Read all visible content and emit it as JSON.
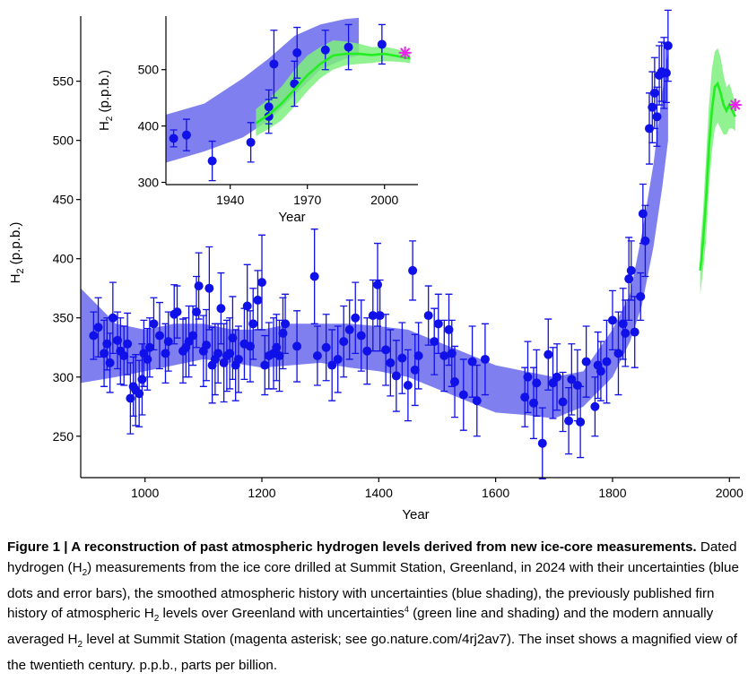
{
  "caption": {
    "label": "Figure 1 | ",
    "title": "A reconstruction of past atmospheric hydrogen levels derived from new ice-core measurements.",
    "t1": " Dated hydrogen (H",
    "t2": ") measurements from the ice core drilled at Summit Station, Greenland, in 2024 with their uncertainties (blue dots and error bars), the smoothed atmospheric history with uncertainties (blue shading), the previously published firn history of atmospheric H",
    "t3": " levels over Greenland with uncertainties",
    "ref": "4",
    "t4": " (green line and shading) and the modern annually averaged H",
    "t5": " level at Summit Station (magenta asterisk; see go.nature.com/4rj2av7). The inset shows a magnified view of the twentieth century. p.p.b., parts per billion.",
    "sub": "2"
  },
  "chart_data": [
    {
      "type": "scatter",
      "xlabel": "Year",
      "ylabel_main": "H",
      "ylabel_sub": "2",
      "ylabel_tail": " (p.p.b.)",
      "xlim": [
        890,
        2018
      ],
      "ylim": [
        215,
        605
      ],
      "xticks": [
        1000,
        1200,
        1400,
        1600,
        1800,
        2000
      ],
      "yticks": [
        250,
        300,
        350,
        400,
        450,
        500,
        550
      ],
      "colors": {
        "points": "#1010e8",
        "band": "#7f7ff0",
        "firn_line": "#22ee22",
        "firn_band": "#7df07d",
        "asterisk": "#ee22ee"
      },
      "series": [
        {
          "points": [
            [
              912,
              335,
              20
            ],
            [
              920,
              342,
              25
            ],
            [
              930,
              320,
              28
            ],
            [
              935,
              328,
              22
            ],
            [
              940,
              312,
              25
            ],
            [
              945,
              350,
              30
            ],
            [
              953,
              331,
              24
            ],
            [
              958,
              322,
              28
            ],
            [
              964,
              318,
              25
            ],
            [
              970,
              328,
              26
            ],
            [
              975,
              282,
              30
            ],
            [
              980,
              292,
              25
            ],
            [
              984,
              289,
              30
            ],
            [
              990,
              286,
              28
            ],
            [
              995,
              298,
              30
            ],
            [
              998,
              320,
              28
            ],
            [
              1004,
              315,
              26
            ],
            [
              1008,
              325,
              25
            ],
            [
              1015,
              345,
              22
            ],
            [
              1025,
              335,
              28
            ],
            [
              1035,
              320,
              25
            ],
            [
              1040,
              330,
              25
            ],
            [
              1050,
              353,
              25
            ],
            [
              1055,
              355,
              22
            ],
            [
              1065,
              322,
              27
            ],
            [
              1070,
              325,
              25
            ],
            [
              1075,
              330,
              30
            ],
            [
              1082,
              335,
              25
            ],
            [
              1088,
              355,
              30
            ],
            [
              1092,
              377,
              28
            ],
            [
              1100,
              322,
              30
            ],
            [
              1105,
              327,
              30
            ],
            [
              1110,
              375,
              35
            ],
            [
              1115,
              310,
              32
            ],
            [
              1120,
              315,
              30
            ],
            [
              1125,
              320,
              25
            ],
            [
              1130,
              358,
              30
            ],
            [
              1135,
              312,
              33
            ],
            [
              1140,
              318,
              30
            ],
            [
              1145,
              320,
              30
            ],
            [
              1150,
              333,
              35
            ],
            [
              1155,
              310,
              30
            ],
            [
              1160,
              315,
              28
            ],
            [
              1170,
              328,
              30
            ],
            [
              1175,
              360,
              35
            ],
            [
              1180,
              326,
              30
            ],
            [
              1185,
              345,
              30
            ],
            [
              1193,
              365,
              25
            ],
            [
              1200,
              380,
              40
            ],
            [
              1205,
              310,
              25
            ],
            [
              1212,
              318,
              28
            ],
            [
              1220,
              320,
              30
            ],
            [
              1225,
              325,
              28
            ],
            [
              1230,
              318,
              30
            ],
            [
              1236,
              337,
              30
            ],
            [
              1240,
              345,
              25
            ],
            [
              1260,
              326,
              30
            ],
            [
              1290,
              385,
              40
            ],
            [
              1295,
              318,
              25
            ],
            [
              1310,
              325,
              28
            ],
            [
              1320,
              310,
              30
            ],
            [
              1330,
              315,
              28
            ],
            [
              1340,
              330,
              30
            ],
            [
              1350,
              340,
              25
            ],
            [
              1360,
              350,
              30
            ],
            [
              1370,
              335,
              30
            ],
            [
              1380,
              322,
              28
            ],
            [
              1390,
              352,
              30
            ],
            [
              1398,
              378,
              35
            ],
            [
              1402,
              352,
              30
            ],
            [
              1412,
              323,
              30
            ],
            [
              1420,
              312,
              28
            ],
            [
              1430,
              301,
              30
            ],
            [
              1440,
              316,
              30
            ],
            [
              1450,
              293,
              30
            ],
            [
              1458,
              390,
              25
            ],
            [
              1462,
              306,
              30
            ],
            [
              1468,
              318,
              28
            ],
            [
              1485,
              352,
              25
            ],
            [
              1495,
              330,
              28
            ],
            [
              1502,
              345,
              25
            ],
            [
              1512,
              318,
              30
            ],
            [
              1520,
              340,
              30
            ],
            [
              1525,
              320,
              28
            ],
            [
              1530,
              296,
              30
            ],
            [
              1545,
              285,
              30
            ],
            [
              1560,
              313,
              30
            ],
            [
              1568,
              280,
              30
            ],
            [
              1582,
              315,
              30
            ],
            [
              1650,
              283,
              25
            ],
            [
              1655,
              300,
              30
            ],
            [
              1665,
              278,
              30
            ],
            [
              1670,
              295,
              28
            ],
            [
              1680,
              244,
              30
            ],
            [
              1690,
              319,
              30
            ],
            [
              1698,
              295,
              30
            ],
            [
              1705,
              300,
              28
            ],
            [
              1715,
              279,
              25
            ],
            [
              1725,
              263,
              28
            ],
            [
              1730,
              298,
              30
            ],
            [
              1740,
              293,
              30
            ],
            [
              1745,
              262,
              30
            ],
            [
              1755,
              313,
              30
            ],
            [
              1770,
              275,
              25
            ],
            [
              1775,
              310,
              28
            ],
            [
              1780,
              305,
              25
            ],
            [
              1790,
              313,
              35
            ],
            [
              1800,
              348,
              25
            ],
            [
              1810,
              320,
              35
            ],
            [
              1818,
              345,
              30
            ],
            [
              1822,
              337,
              28
            ],
            [
              1828,
              383,
              35
            ],
            [
              1832,
              390,
              25
            ],
            [
              1838,
              338,
              30
            ],
            [
              1848,
              368,
              20
            ],
            [
              1852,
              438,
              25
            ],
            [
              1856,
              415,
              30
            ],
            [
              1863,
              510,
              30
            ],
            [
              1868,
              528,
              30
            ],
            [
              1872,
              540,
              30
            ],
            [
              1876,
              520,
              25
            ],
            [
              1880,
              555,
              25
            ],
            [
              1884,
              558,
              25
            ],
            [
              1888,
              557,
              30
            ],
            [
              1892,
              557,
              25
            ],
            [
              1895,
              580,
              30
            ]
          ],
          "band_x": [
            890,
            950,
            1000,
            1050,
            1100,
            1150,
            1200,
            1250,
            1300,
            1350,
            1400,
            1450,
            1500,
            1550,
            1600,
            1650,
            1700,
            1750,
            1800,
            1830,
            1850,
            1870,
            1885,
            1895
          ],
          "band_lo": [
            295,
            300,
            305,
            310,
            315,
            312,
            308,
            310,
            312,
            308,
            305,
            300,
            290,
            280,
            270,
            268,
            265,
            275,
            300,
            330,
            360,
            410,
            460,
            500
          ],
          "band_hi": [
            375,
            345,
            340,
            345,
            345,
            340,
            340,
            345,
            345,
            345,
            343,
            340,
            330,
            320,
            310,
            305,
            300,
            305,
            340,
            370,
            420,
            480,
            540,
            575
          ],
          "firn_x": [
            1950,
            1955,
            1960,
            1965,
            1970,
            1975,
            1980,
            1985,
            1990,
            1995,
            2000,
            2005,
            2010
          ],
          "firn_y": [
            390,
            415,
            450,
            495,
            525,
            545,
            548,
            540,
            530,
            525,
            530,
            525,
            520
          ],
          "firn_lo": [
            370,
            390,
            415,
            460,
            490,
            510,
            515,
            510,
            505,
            505,
            510,
            510,
            508
          ],
          "firn_hi": [
            410,
            440,
            485,
            530,
            560,
            575,
            578,
            570,
            555,
            545,
            548,
            540,
            532
          ],
          "asterisk": [
            2010,
            530
          ]
        }
      ]
    },
    {
      "type": "scatter",
      "xlabel": "Year",
      "ylabel_main": "H",
      "ylabel_sub": "2",
      "ylabel_tail": " (p.p.b.)",
      "xlim": [
        1915,
        2013
      ],
      "ylim": [
        296,
        595
      ],
      "xticks": [
        1940,
        1970,
        2000
      ],
      "yticks": [
        300,
        400,
        500
      ],
      "series": [
        {
          "points": [
            [
              1918,
              378,
              15
            ],
            [
              1923,
              384,
              28
            ],
            [
              1933,
              338,
              35
            ],
            [
              1948,
              371,
              35
            ],
            [
              1955,
              417,
              30
            ],
            [
              1955,
              434,
              30
            ],
            [
              1957,
              510,
              60
            ],
            [
              1965,
              475,
              40
            ],
            [
              1966,
              530,
              45
            ],
            [
              1977,
              535,
              35
            ],
            [
              1986,
              540,
              40
            ],
            [
              1999,
              545,
              35
            ]
          ],
          "band_x": [
            1915,
            1930,
            1945,
            1955,
            1965,
            1975,
            1985,
            1990
          ],
          "band_lo": [
            335,
            355,
            380,
            410,
            455,
            500,
            520,
            525
          ],
          "band_hi": [
            420,
            440,
            485,
            520,
            560,
            580,
            590,
            592
          ],
          "firn_x": [
            1950,
            1955,
            1960,
            1965,
            1970,
            1975,
            1980,
            1985,
            1990,
            1995,
            2000,
            2005,
            2010
          ],
          "firn_y": [
            405,
            420,
            440,
            465,
            490,
            510,
            525,
            528,
            528,
            526,
            528,
            524,
            520
          ],
          "firn_lo": [
            382,
            395,
            410,
            435,
            462,
            485,
            500,
            508,
            510,
            512,
            515,
            514,
            512
          ],
          "firn_hi": [
            430,
            448,
            470,
            500,
            525,
            540,
            552,
            550,
            546,
            540,
            541,
            536,
            530
          ],
          "asterisk": [
            2008,
            530
          ]
        }
      ]
    }
  ]
}
